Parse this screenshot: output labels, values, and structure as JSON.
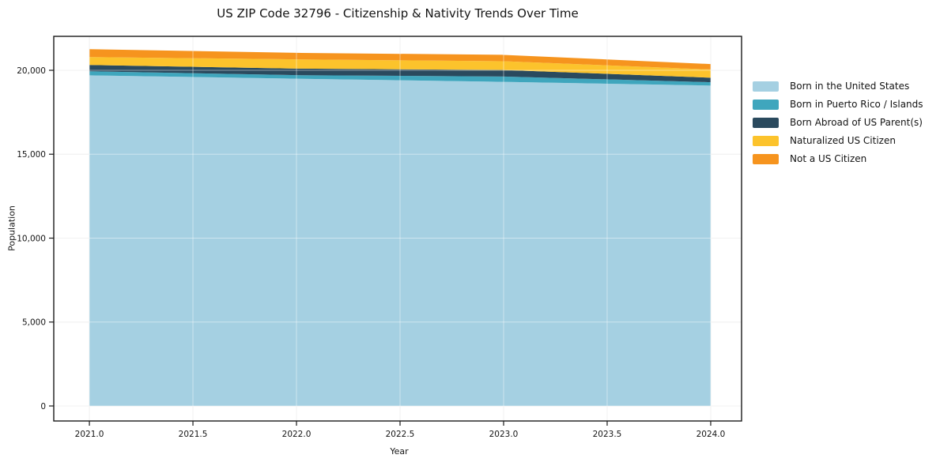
{
  "title": "US ZIP Code 32796 - Citizenship & Nativity Trends Over Time",
  "chart_data": {
    "type": "area",
    "stacked": true,
    "title": "US ZIP Code 32796 - Citizenship & Nativity Trends Over Time",
    "xlabel": "Year",
    "ylabel": "Population",
    "x": [
      2021,
      2022,
      2023,
      2024
    ],
    "series": [
      {
        "name": "Born in the United States",
        "color": "#a5d0e2",
        "values": [
          19700,
          19500,
          19310,
          19090
        ]
      },
      {
        "name": "Born in Puerto Rico / Islands",
        "color": "#3fa6bd",
        "values": [
          240,
          210,
          320,
          200
        ]
      },
      {
        "name": "Born Abroad of US Parent(s)",
        "color": "#2a4a5e",
        "values": [
          380,
          390,
          390,
          270
        ]
      },
      {
        "name": "Naturalized US Citizen",
        "color": "#fcc32c",
        "values": [
          470,
          550,
          520,
          490
        ]
      },
      {
        "name": "Not a US Citizen",
        "color": "#f6941e",
        "values": [
          470,
          390,
          380,
          320
        ]
      }
    ],
    "totals": [
      21260,
      21040,
      20920,
      20370
    ],
    "x_ticks": {
      "values": [
        2021.0,
        2021.5,
        2022.0,
        2022.5,
        2023.0,
        2023.5,
        2024.0
      ],
      "labels": [
        "2021.0",
        "2021.5",
        "2022.0",
        "2022.5",
        "2023.0",
        "2023.5",
        "2024.0"
      ]
    },
    "y_ticks": {
      "values": [
        0,
        5000,
        10000,
        15000,
        20000
      ],
      "labels": [
        "0",
        "5,000",
        "10,000",
        "15,000",
        "20,000"
      ]
    },
    "xlim": [
      2020.828,
      2024.149
    ],
    "ylim": [
      -894,
      22023
    ],
    "grid": true,
    "legend_position": "outside-right"
  }
}
